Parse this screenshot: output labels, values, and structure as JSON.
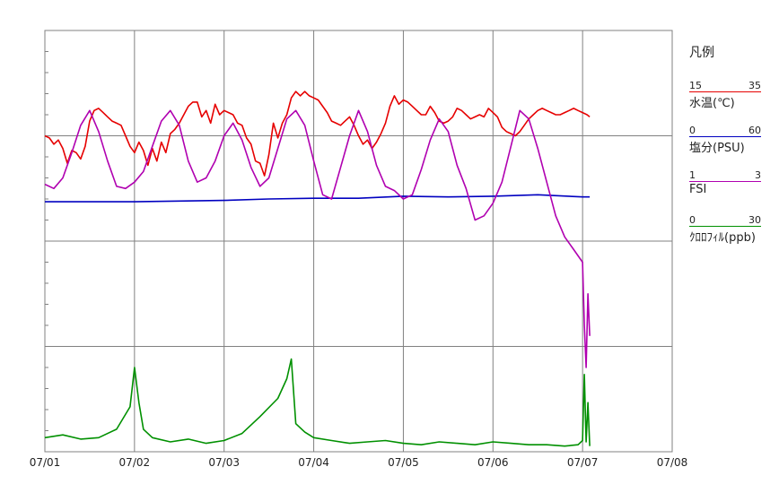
{
  "chart_data": {
    "type": "line",
    "x_ticks": [
      "07/01",
      "07/02",
      "07/03",
      "07/04",
      "07/05",
      "07/06",
      "07/07",
      "07/08"
    ],
    "xlim": [
      "07/01",
      "07/08"
    ],
    "grid": true,
    "legend_title": "凡例",
    "legend_position": "right",
    "series": [
      {
        "name": "水温(℃)",
        "color": "#e60000",
        "min": "15",
        "max": "35",
        "ylim": [
          15,
          35
        ],
        "x": [
          0,
          0.05,
          0.1,
          0.15,
          0.2,
          0.25,
          0.3,
          0.35,
          0.4,
          0.45,
          0.5,
          0.55,
          0.6,
          0.65,
          0.7,
          0.75,
          0.8,
          0.85,
          0.9,
          0.95,
          1.0,
          1.05,
          1.1,
          1.15,
          1.2,
          1.25,
          1.3,
          1.35,
          1.4,
          1.45,
          1.5,
          1.55,
          1.6,
          1.65,
          1.7,
          1.75,
          1.8,
          1.85,
          1.9,
          1.95,
          2.0,
          2.05,
          2.1,
          2.15,
          2.2,
          2.25,
          2.3,
          2.35,
          2.4,
          2.45,
          2.5,
          2.55,
          2.6,
          2.65,
          2.7,
          2.75,
          2.8,
          2.85,
          2.9,
          2.95,
          3.0,
          3.05,
          3.1,
          3.15,
          3.2,
          3.25,
          3.3,
          3.35,
          3.4,
          3.45,
          3.5,
          3.55,
          3.6,
          3.65,
          3.7,
          3.75,
          3.8,
          3.85,
          3.9,
          3.95,
          4.0,
          4.05,
          4.1,
          4.15,
          4.2,
          4.25,
          4.3,
          4.35,
          4.4,
          4.45,
          4.5,
          4.55,
          4.6,
          4.65,
          4.7,
          4.75,
          4.8,
          4.85,
          4.9,
          4.95,
          5.0,
          5.05,
          5.1,
          5.15,
          5.2,
          5.25,
          5.3,
          5.35,
          5.4,
          5.45,
          5.5,
          5.55,
          5.6,
          5.65,
          5.7,
          5.75,
          5.8,
          5.85,
          5.9,
          5.95,
          6.0,
          6.05,
          6.08
        ],
        "values": [
          30.0,
          29.9,
          29.6,
          29.8,
          29.4,
          28.7,
          29.3,
          29.2,
          28.9,
          29.5,
          30.7,
          31.2,
          31.3,
          31.1,
          30.9,
          30.7,
          30.6,
          30.5,
          30.0,
          29.5,
          29.2,
          29.7,
          29.3,
          28.6,
          29.4,
          28.8,
          29.7,
          29.2,
          30.1,
          30.3,
          30.6,
          31.0,
          31.4,
          31.6,
          31.6,
          30.9,
          31.2,
          30.6,
          31.5,
          31.0,
          31.2,
          31.1,
          31.0,
          30.6,
          30.5,
          29.9,
          29.6,
          28.8,
          28.7,
          28.1,
          29.1,
          30.6,
          29.9,
          30.6,
          31.0,
          31.8,
          32.1,
          31.9,
          32.1,
          31.9,
          31.8,
          31.7,
          31.4,
          31.1,
          30.7,
          30.6,
          30.5,
          30.7,
          30.9,
          30.5,
          30.0,
          29.6,
          29.8,
          29.4,
          29.7,
          30.1,
          30.6,
          31.4,
          31.9,
          31.5,
          31.7,
          31.6,
          31.4,
          31.2,
          31.0,
          31.0,
          31.4,
          31.1,
          30.7,
          30.6,
          30.7,
          30.9,
          31.3,
          31.2,
          31.0,
          30.8,
          30.9,
          31.0,
          30.9,
          31.3,
          31.1,
          30.9,
          30.4,
          30.2,
          30.1,
          30.0,
          30.2,
          30.5,
          30.8,
          31.0,
          31.2,
          31.3,
          31.2,
          31.1,
          31.0,
          31.0,
          31.1,
          31.2,
          31.3,
          31.2,
          31.1,
          31.0,
          30.9
        ]
      },
      {
        "name": "塩分(PSU)",
        "color": "#0000c0",
        "min": "0",
        "max": "60",
        "ylim": [
          0,
          60
        ],
        "x": [
          0,
          0.5,
          1.0,
          1.5,
          2.0,
          2.5,
          3.0,
          3.5,
          4.0,
          4.5,
          5.0,
          5.5,
          6.0,
          6.08
        ],
        "values": [
          35.6,
          35.6,
          35.6,
          35.7,
          35.8,
          36.0,
          36.1,
          36.1,
          36.4,
          36.3,
          36.4,
          36.6,
          36.3,
          36.3
        ]
      },
      {
        "name": "FSI",
        "color": "#b000b0",
        "min": "1",
        "max": "3",
        "ylim": [
          1,
          3
        ],
        "x": [
          0,
          0.1,
          0.2,
          0.3,
          0.4,
          0.5,
          0.6,
          0.7,
          0.8,
          0.9,
          1.0,
          1.1,
          1.2,
          1.3,
          1.4,
          1.5,
          1.6,
          1.7,
          1.8,
          1.9,
          2.0,
          2.1,
          2.2,
          2.3,
          2.4,
          2.5,
          2.6,
          2.7,
          2.8,
          2.9,
          3.0,
          3.1,
          3.2,
          3.3,
          3.4,
          3.5,
          3.6,
          3.7,
          3.8,
          3.9,
          4.0,
          4.1,
          4.2,
          4.3,
          4.4,
          4.5,
          4.6,
          4.7,
          4.8,
          4.9,
          5.0,
          5.1,
          5.2,
          5.3,
          5.4,
          5.5,
          5.6,
          5.7,
          5.8,
          5.9,
          6.0,
          6.02,
          6.04,
          6.06,
          6.08
        ],
        "values": [
          2.27,
          2.25,
          2.3,
          2.42,
          2.55,
          2.62,
          2.52,
          2.38,
          2.26,
          2.25,
          2.28,
          2.33,
          2.45,
          2.57,
          2.62,
          2.55,
          2.38,
          2.28,
          2.3,
          2.38,
          2.5,
          2.56,
          2.48,
          2.35,
          2.26,
          2.3,
          2.44,
          2.58,
          2.62,
          2.55,
          2.38,
          2.22,
          2.2,
          2.35,
          2.5,
          2.62,
          2.52,
          2.36,
          2.26,
          2.24,
          2.2,
          2.22,
          2.34,
          2.48,
          2.58,
          2.52,
          2.36,
          2.25,
          2.1,
          2.12,
          2.18,
          2.28,
          2.45,
          2.62,
          2.58,
          2.44,
          2.28,
          2.12,
          2.02,
          1.96,
          1.9,
          1.6,
          1.4,
          1.75,
          1.55
        ]
      },
      {
        "name": "ｸﾛﾛﾌｨﾙ(ppb)",
        "color": "#009000",
        "min": "0",
        "max": "30",
        "ylim": [
          0,
          30
        ],
        "x": [
          0,
          0.2,
          0.4,
          0.6,
          0.8,
          0.95,
          1.0,
          1.05,
          1.1,
          1.2,
          1.4,
          1.6,
          1.8,
          2.0,
          2.2,
          2.4,
          2.6,
          2.7,
          2.75,
          2.8,
          2.9,
          3.0,
          3.2,
          3.4,
          3.6,
          3.8,
          4.0,
          4.2,
          4.4,
          4.6,
          4.8,
          5.0,
          5.2,
          5.4,
          5.6,
          5.8,
          5.95,
          6.0,
          6.02,
          6.04,
          6.06,
          6.08
        ],
        "values": [
          1.0,
          1.2,
          0.9,
          1.0,
          1.6,
          3.2,
          6.0,
          3.5,
          1.6,
          1.0,
          0.7,
          0.9,
          0.6,
          0.8,
          1.3,
          2.5,
          3.8,
          5.2,
          6.6,
          2.0,
          1.4,
          1.0,
          0.8,
          0.6,
          0.7,
          0.8,
          0.6,
          0.5,
          0.7,
          0.6,
          0.5,
          0.7,
          0.6,
          0.5,
          0.5,
          0.4,
          0.5,
          0.8,
          5.5,
          0.7,
          3.5,
          0.4
        ]
      }
    ]
  }
}
